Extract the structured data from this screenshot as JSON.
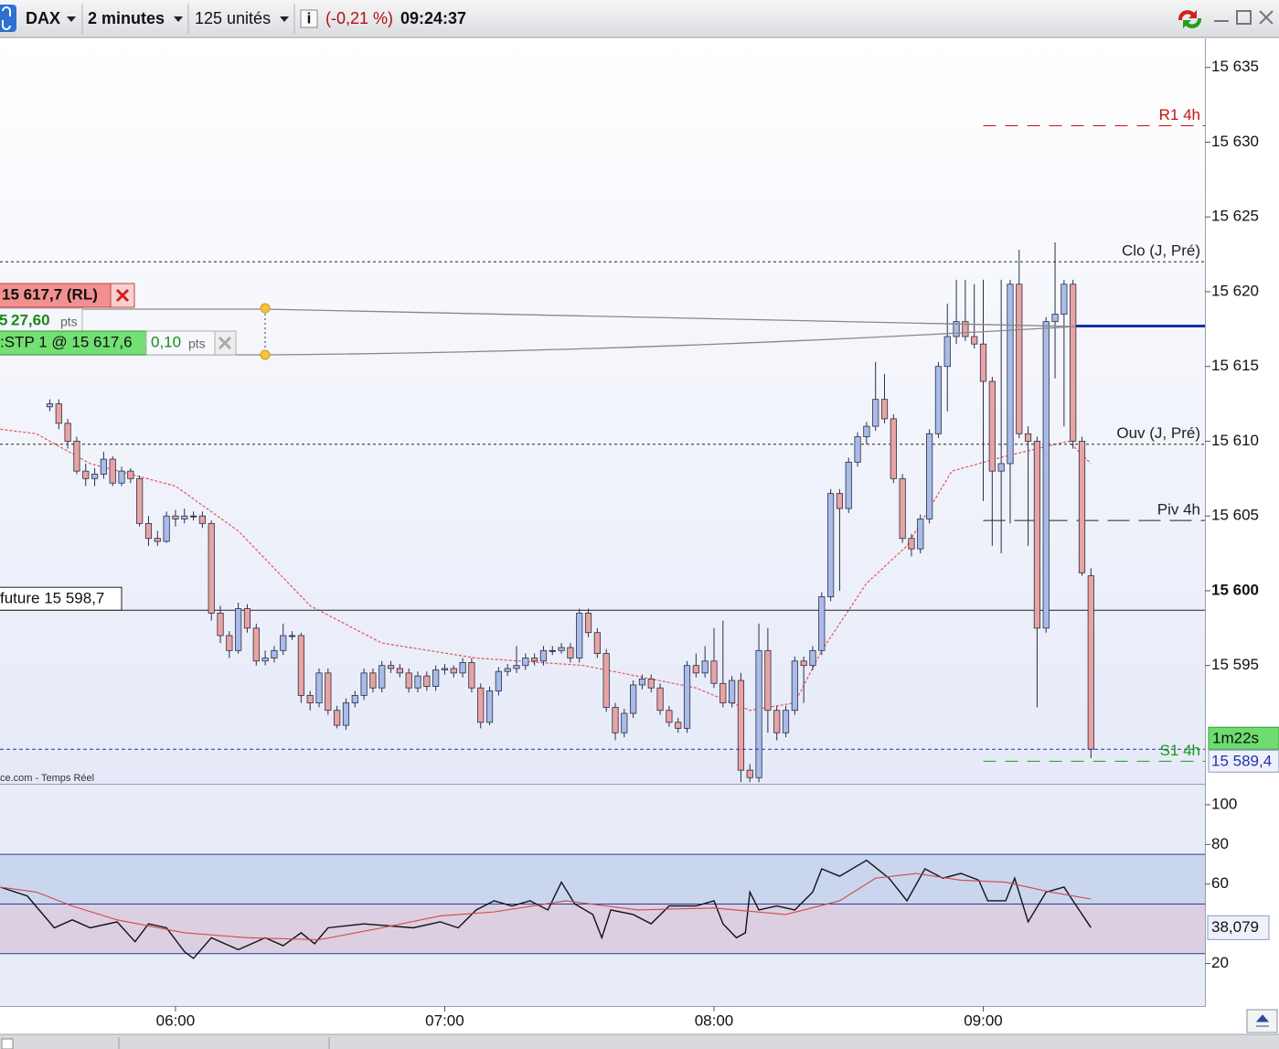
{
  "toolbar": {
    "symbol": "DAX",
    "period": "2 minutes",
    "units": "125 unités",
    "change": "(-0,21 %)",
    "time": "09:24:37"
  },
  "order": {
    "label": "15 617,7 (RL)",
    "value": 15617.7,
    "distance_prefix": "5",
    "distance": "27,60",
    "distance_unit": "pts",
    "stop_label": ":STP 1 @ 15 617,6",
    "stop_distance": "0,10",
    "stop_unit": "pts"
  },
  "footer": "ce.com - Temps Réel",
  "chart_data": [
    {
      "type": "candlestick",
      "colors": {
        "up": "#a9bbe9",
        "down": "#e9a3a3",
        "outline": "#2a2f45"
      },
      "xlim": [
        320.9,
        589.4
      ],
      "ylim": [
        15587.09,
        15636.94
      ],
      "yticks": [
        {
          "value": 15595,
          "label": "15 595"
        },
        {
          "value": 15600,
          "label": "15 600",
          "bold": true
        },
        {
          "value": 15605,
          "label": "15 605"
        },
        {
          "value": 15610,
          "label": "15 610"
        },
        {
          "value": 15615,
          "label": "15 615"
        },
        {
          "value": 15620,
          "label": "15 620"
        },
        {
          "value": 15625,
          "label": "15 625"
        },
        {
          "value": 15630,
          "label": "15 630"
        },
        {
          "value": 15635,
          "label": "15 635"
        }
      ],
      "x": [
        332,
        334,
        336,
        338,
        340,
        342,
        344,
        346,
        348,
        350,
        352,
        354,
        356,
        358,
        360,
        362,
        364,
        366,
        368,
        370,
        372,
        374,
        376,
        378,
        380,
        382,
        384,
        386,
        388,
        390,
        392,
        394,
        396,
        398,
        400,
        402,
        404,
        406,
        408,
        410,
        412,
        414,
        416,
        418,
        420,
        422,
        424,
        426,
        428,
        430,
        432,
        434,
        436,
        438,
        440,
        442,
        444,
        446,
        448,
        450,
        452,
        454,
        456,
        458,
        460,
        462,
        464,
        466,
        468,
        470,
        472,
        474,
        476,
        478,
        480,
        482,
        484,
        486,
        488,
        490,
        492,
        494,
        496,
        498,
        500,
        502,
        504,
        506,
        508,
        510,
        512,
        514,
        516,
        518,
        520,
        522,
        524,
        526,
        528,
        530,
        532,
        534,
        536,
        538,
        540,
        542,
        544,
        546,
        548,
        550,
        552,
        554,
        556,
        558,
        560,
        562,
        564
      ],
      "ohlc": [
        [
          15612.3,
          15612.8,
          15612,
          15612.5
        ],
        [
          15612.5,
          15612.8,
          15610.8,
          15611.2
        ],
        [
          15611.2,
          15611.5,
          15609.5,
          15610
        ],
        [
          15610,
          15610.3,
          15607.8,
          15608
        ],
        [
          15608,
          15608.5,
          15607,
          15607.5
        ],
        [
          15607.5,
          15608.2,
          15607,
          15607.8
        ],
        [
          15607.8,
          15609.3,
          15607.5,
          15608.8
        ],
        [
          15608.8,
          15609,
          15607,
          15607.2
        ],
        [
          15607.2,
          15608.3,
          15607,
          15608
        ],
        [
          15608,
          15608.2,
          15607.2,
          15607.5
        ],
        [
          15607.5,
          15607.7,
          15604.3,
          15604.5
        ],
        [
          15604.5,
          15605,
          15603,
          15603.5
        ],
        [
          15603.5,
          15604,
          15603,
          15603.3
        ],
        [
          15603.3,
          15605.3,
          15603.2,
          15605
        ],
        [
          15605,
          15605.4,
          15604.3,
          15604.8
        ],
        [
          15604.8,
          15605.5,
          15604.5,
          15605
        ],
        [
          15605,
          15605.3,
          15604.7,
          15605
        ],
        [
          15605,
          15605.3,
          15604.2,
          15604.5
        ],
        [
          15604.5,
          15604.7,
          15598,
          15598.5
        ],
        [
          15598.5,
          15599,
          15596.5,
          15597
        ],
        [
          15597,
          15597.3,
          15595.5,
          15596
        ],
        [
          15596,
          15599.2,
          15595.8,
          15598.8
        ],
        [
          15598.8,
          15599.1,
          15597.2,
          15597.5
        ],
        [
          15597.5,
          15597.8,
          15595,
          15595.3
        ],
        [
          15595.3,
          15596,
          15595,
          15595.5
        ],
        [
          15595.5,
          15596.3,
          15595.2,
          15596
        ],
        [
          15596,
          15597.8,
          15595.7,
          15597
        ],
        [
          15597,
          15597.3,
          15596.7,
          15597
        ],
        [
          15597,
          15597.2,
          15592.5,
          15593
        ],
        [
          15593,
          15593.3,
          15592,
          15592.5
        ],
        [
          15592.5,
          15594.8,
          15592.2,
          15594.5
        ],
        [
          15594.5,
          15594.8,
          15591.7,
          15592
        ],
        [
          15592,
          15592.3,
          15590.8,
          15591
        ],
        [
          15591,
          15592.8,
          15590.7,
          15592.5
        ],
        [
          15592.5,
          15593.3,
          15592.2,
          15593
        ],
        [
          15593,
          15594.8,
          15592.7,
          15594.5
        ],
        [
          15594.5,
          15594.8,
          15593.2,
          15593.5
        ],
        [
          15593.5,
          15595.3,
          15593.2,
          15595
        ],
        [
          15595,
          15595.3,
          15594.5,
          15594.8
        ],
        [
          15594.8,
          15595.1,
          15594.2,
          15594.5
        ],
        [
          15594.5,
          15594.8,
          15593.2,
          15593.5
        ],
        [
          15593.5,
          15594.6,
          15593.2,
          15594.3
        ],
        [
          15594.3,
          15594.6,
          15593.3,
          15593.6
        ],
        [
          15593.6,
          15595,
          15593.3,
          15594.7
        ],
        [
          15594.7,
          15595.1,
          15594.4,
          15594.8
        ],
        [
          15594.8,
          15595,
          15594.2,
          15594.5
        ],
        [
          15594.5,
          15595.5,
          15594.2,
          15595.2
        ],
        [
          15595.2,
          15595.5,
          15593.2,
          15593.5
        ],
        [
          15593.5,
          15593.8,
          15590.8,
          15591.2
        ],
        [
          15591.2,
          15593.6,
          15591,
          15593.3
        ],
        [
          15593.3,
          15594.9,
          15593,
          15594.6
        ],
        [
          15594.6,
          15595.1,
          15594.3,
          15594.8
        ],
        [
          15594.8,
          15596.3,
          15594.5,
          15595
        ],
        [
          15595,
          15595.8,
          15594.7,
          15595.5
        ],
        [
          15595.5,
          15595.8,
          15595,
          15595.3
        ],
        [
          15595.3,
          15596.3,
          15595,
          15596
        ],
        [
          15596,
          15596.3,
          15595.7,
          15596
        ],
        [
          15596,
          15596.5,
          15595.8,
          15596.2
        ],
        [
          15596.2,
          15596.5,
          15595.2,
          15595.5
        ],
        [
          15595.5,
          15598.8,
          15595.2,
          15598.5
        ],
        [
          15598.5,
          15598.8,
          15596.9,
          15597.2
        ],
        [
          15597.2,
          15597.5,
          15595.5,
          15595.8
        ],
        [
          15595.8,
          15596.1,
          15591.9,
          15592.2
        ],
        [
          15592.2,
          15592.5,
          15590,
          15590.5
        ],
        [
          15590.5,
          15592.1,
          15590.2,
          15591.8
        ],
        [
          15591.8,
          15594,
          15591.5,
          15593.7
        ],
        [
          15593.7,
          15594.4,
          15593.4,
          15594.1
        ],
        [
          15594.1,
          15594.4,
          15593.2,
          15593.5
        ],
        [
          15593.5,
          15593.8,
          15591.7,
          15592
        ],
        [
          15592,
          15592.3,
          15590.9,
          15591.2
        ],
        [
          15591.2,
          15591.5,
          15590.5,
          15590.8
        ],
        [
          15590.8,
          15595.3,
          15590.5,
          15595
        ],
        [
          15595,
          15595.8,
          15594.2,
          15594.5
        ],
        [
          15594.5,
          15596.3,
          15594.2,
          15595.3
        ],
        [
          15595.3,
          15597.5,
          15593.5,
          15593.8
        ],
        [
          15593.8,
          15598,
          15592.2,
          15592.5
        ],
        [
          15592.5,
          15594.3,
          15592.2,
          15594
        ],
        [
          15594,
          15594.5,
          15587.2,
          15588
        ],
        [
          15588,
          15588.4,
          15587.2,
          15587.5
        ],
        [
          15587.5,
          15597.8,
          15587.2,
          15596
        ],
        [
          15596,
          15597.5,
          15590.5,
          15592
        ],
        [
          15592,
          15592.3,
          15590,
          15590.5
        ],
        [
          15590.5,
          15592.3,
          15590.2,
          15592
        ],
        [
          15592,
          15595.6,
          15591.7,
          15595.3
        ],
        [
          15595.3,
          15595.6,
          15592.5,
          15595
        ],
        [
          15595,
          15596.3,
          15594.7,
          15596
        ],
        [
          15596,
          15599.9,
          15595.7,
          15599.6
        ],
        [
          15599.6,
          15606.8,
          15599.3,
          15606.5
        ],
        [
          15606.5,
          15606.8,
          15600,
          15605.5
        ],
        [
          15605.5,
          15608.9,
          15605.2,
          15608.6
        ],
        [
          15608.6,
          15610.6,
          15608.3,
          15610.3
        ],
        [
          15610.3,
          15611.3,
          15609.8,
          15611
        ],
        [
          15611,
          15615.3,
          15610.7,
          15612.8
        ],
        [
          15612.8,
          15614.5,
          15611.2,
          15611.5
        ],
        [
          15611.5,
          15611.8,
          15607.2,
          15607.5
        ],
        [
          15607.5,
          15607.8,
          15603.2,
          15603.5
        ],
        [
          15603.5,
          15603.8,
          15602.3,
          15602.8
        ],
        [
          15602.8,
          15605.1,
          15602.5,
          15604.8
        ],
        [
          15604.8,
          15610.8,
          15604.5,
          15610.5
        ],
        [
          15610.5,
          15615.3,
          15610.2,
          15615
        ],
        [
          15615,
          15619.2,
          15612,
          15617
        ],
        [
          15617,
          15620.8,
          15616.5,
          15618
        ],
        [
          15618,
          15620.8,
          15616.7,
          15617
        ],
        [
          15617,
          15620.5,
          15616.2,
          15616.5
        ],
        [
          15616.5,
          15620.8,
          15606,
          15614
        ],
        [
          15614,
          15614.3,
          15603,
          15608
        ],
        [
          15608,
          15620.8,
          15602.5,
          15608.5
        ],
        [
          15608.5,
          15620.8,
          15604.5,
          15620.5
        ],
        [
          15620.5,
          15622.8,
          15610.2,
          15610.5
        ],
        [
          15610.5,
          15611,
          15603,
          15610
        ],
        [
          15610,
          15610.3,
          15592.2,
          15597.5
        ],
        [
          15597.5,
          15618.3,
          15597.2,
          15618
        ],
        [
          15618,
          15623.3,
          15614.2,
          15618.5
        ],
        [
          15618.5,
          15620.8,
          15611,
          15620.5
        ],
        [
          15620.5,
          15620.8,
          15609.5,
          15610
        ],
        [
          15610,
          15610.3,
          15601,
          15601.2
        ],
        [
          15601,
          15601.5,
          15588.8,
          15589.4
        ]
      ],
      "moving_average": {
        "color": "#e05555",
        "x": [
          321,
          329,
          341,
          360,
          374,
          390,
          406,
          427,
          451,
          476,
          488,
          498,
          504,
          514,
          523,
          533,
          545,
          559,
          564
        ],
        "values": [
          15610.8,
          15610.5,
          15608.5,
          15607,
          15604,
          15599,
          15596.5,
          15595.5,
          15595,
          15593.5,
          15592,
          15592.5,
          15596,
          15600.5,
          15603,
          15608,
          15609,
          15610,
          15608.5
        ]
      },
      "levels": [
        {
          "name": "R1 4h",
          "value": 15631.1,
          "color": "#cc1111",
          "style": "dashed",
          "start": 540
        },
        {
          "name": "Clo (J, Pré)",
          "value": 15622,
          "color": "#222222",
          "style": "dotted"
        },
        {
          "name": "Ouv (J, Pré)",
          "value": 15609.8,
          "color": "#222222",
          "style": "dotted"
        },
        {
          "name": "Piv 4h",
          "value": 15604.7,
          "color": "#222222",
          "style": "longdash",
          "start": 540
        },
        {
          "name": "S1 4h",
          "value": 15588.6,
          "color": "#1a9a1a",
          "style": "dashed",
          "start": 540
        }
      ],
      "future": {
        "value": 15598.7,
        "label": "future 15 598,7"
      },
      "current": {
        "value": 15589.4,
        "label": "15 589,4",
        "color": "#2233aa",
        "timer": "1m22s"
      }
    },
    {
      "type": "line",
      "xlim": [
        320.9,
        589.4
      ],
      "ylim": [
        -1.4,
        110.1
      ],
      "yticks": [
        20,
        60,
        80,
        100
      ],
      "xticks": [
        {
          "value": 360,
          "label": "06:00"
        },
        {
          "value": 420,
          "label": "07:00"
        },
        {
          "value": 480,
          "label": "08:00"
        },
        {
          "value": 540,
          "label": "09:00"
        }
      ],
      "bands": [
        {
          "from": 50,
          "to": 75,
          "color": "#c9d6ee"
        },
        {
          "from": 25,
          "to": 50,
          "color": "#dccfe1"
        }
      ],
      "band_line_color": "#2a3a9a",
      "series": [
        {
          "color": "#111111",
          "x": [
            321,
            327,
            333,
            337,
            341,
            347,
            351,
            354,
            358,
            362,
            364,
            368,
            374,
            380,
            384,
            388,
            391,
            394,
            402,
            413,
            419,
            423,
            427,
            431,
            435,
            439,
            443,
            446,
            449,
            453,
            455,
            457,
            462,
            466,
            470,
            476,
            480,
            482,
            485,
            487,
            488,
            490,
            494,
            498,
            502,
            504,
            508,
            514,
            519,
            523,
            527,
            531,
            535,
            539,
            541,
            545,
            547,
            550,
            554,
            558,
            560,
            564
          ],
          "values": [
            58.5,
            54,
            38,
            42,
            38,
            41,
            31,
            40,
            38,
            26,
            22.6,
            33,
            27,
            33,
            29,
            35.5,
            30,
            38,
            40,
            38,
            41,
            38,
            47,
            51.6,
            49,
            51.6,
            47,
            61,
            50,
            44.7,
            33,
            47,
            44.7,
            40,
            49,
            49,
            51.6,
            40,
            33,
            35.5,
            56,
            47,
            49,
            47,
            56,
            67.7,
            64,
            72,
            63,
            51.6,
            67.7,
            63,
            65.4,
            62,
            51.6,
            51.6,
            63,
            41,
            56,
            58.5,
            51.6,
            38.079
          ]
        },
        {
          "color": "#d04848",
          "x": [
            321,
            329,
            337,
            347,
            362,
            376,
            392,
            406,
            419,
            431,
            447,
            463,
            480,
            496,
            508,
            516,
            525,
            535,
            545,
            555,
            564
          ],
          "values": [
            58.5,
            56,
            49,
            42,
            35.5,
            33,
            32,
            38,
            44,
            46,
            51.6,
            47,
            48,
            44.7,
            51.6,
            63,
            65.4,
            62,
            61,
            56,
            52.5
          ]
        }
      ],
      "current": {
        "value": 38.079,
        "label": "38,079"
      }
    }
  ]
}
